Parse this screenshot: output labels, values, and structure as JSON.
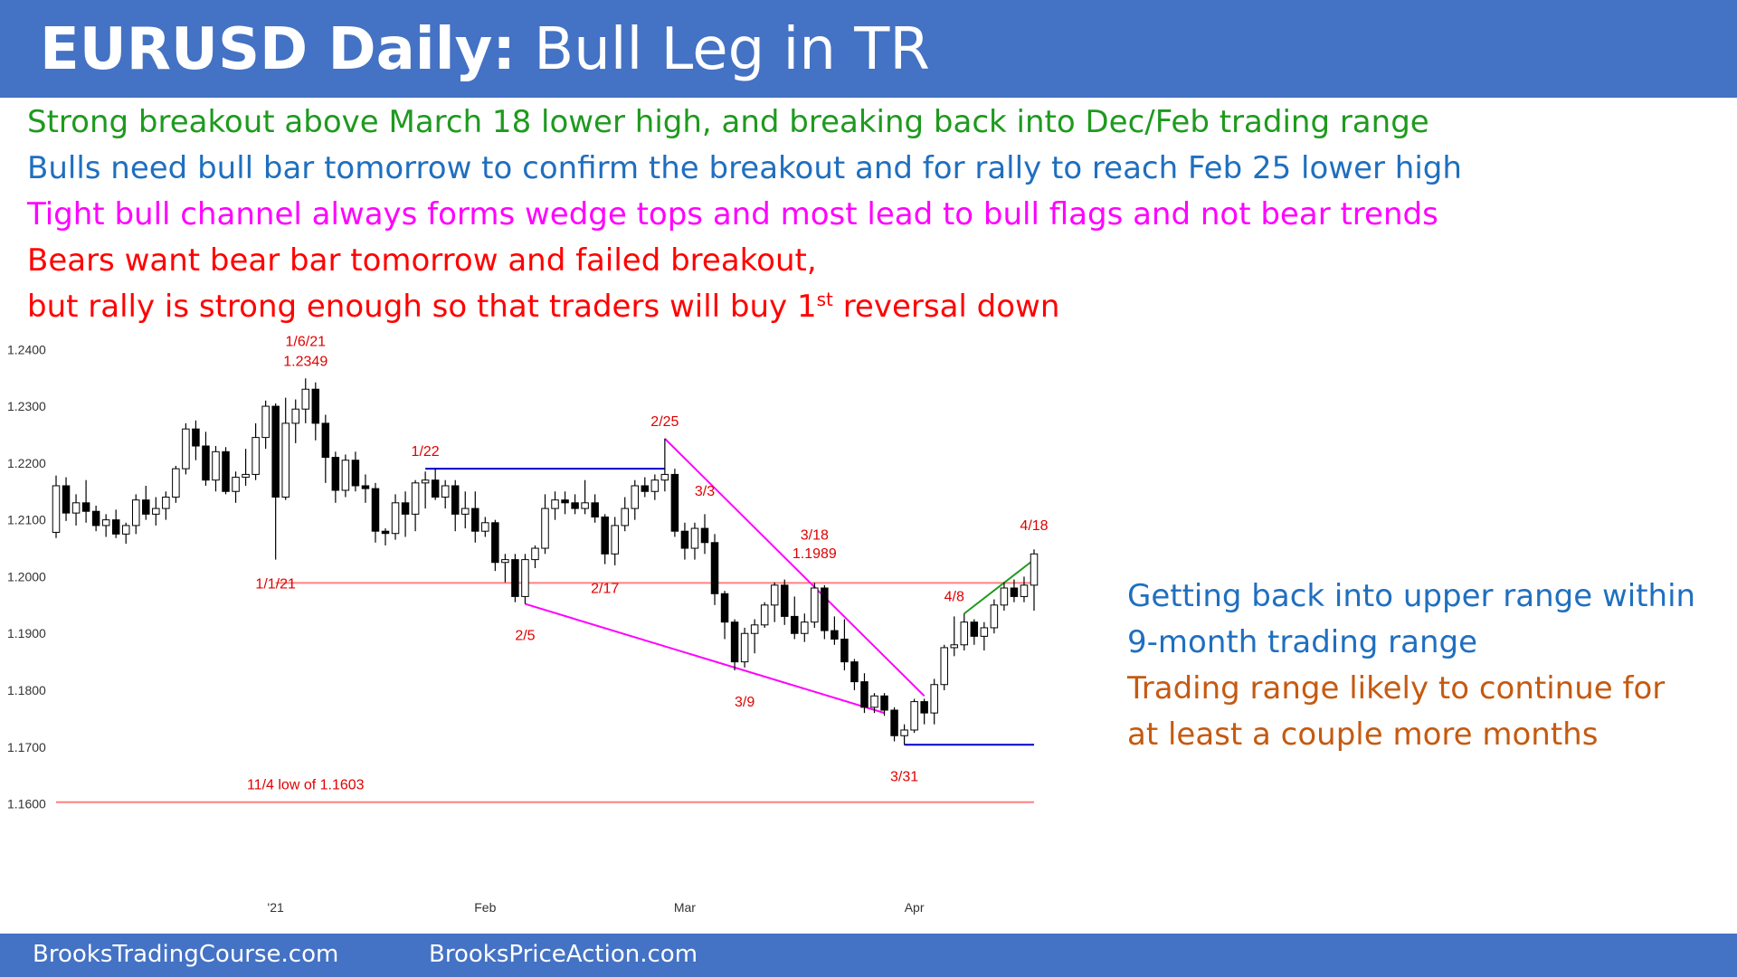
{
  "header": {
    "title_bold": "EURUSD Daily:",
    "title_rest": " Bull Leg in TR",
    "background": "#4472c4"
  },
  "notes": [
    {
      "text": "Strong breakout above March 18 lower high, and breaking back into Dec/Feb trading range",
      "color": "#1e9a1e"
    },
    {
      "text": "Bulls need bull bar tomorrow to confirm the breakout and for rally to reach Feb 25 lower high",
      "color": "#1f6fbf"
    },
    {
      "text": "Tight bull channel always forms wedge tops and most lead to bull flags and not bear trends",
      "color": "#ff00ff"
    },
    {
      "text": "Bears want bear bar tomorrow and failed breakout,",
      "color": "#ff0000"
    }
  ],
  "note_last": {
    "pre": "but rally is strong enough so that traders will buy 1",
    "sup": "st",
    "post": " reversal down",
    "color": "#ff0000"
  },
  "side_notes": [
    {
      "text": "Getting back into upper range within",
      "color": "#1f6fbf"
    },
    {
      "text": "9-month trading range",
      "color": "#1f6fbf"
    },
    {
      "text": "Trading range likely to continue for",
      "color": "#c55a11"
    },
    {
      "text": "at least a couple more months",
      "color": "#c55a11"
    }
  ],
  "footer": {
    "left": "BrooksTradingCourse.com",
    "right": "BrooksPriceAction.com"
  },
  "chart_data": {
    "type": "candlestick",
    "ylim": [
      1.155,
      1.241
    ],
    "yticks": [
      "1.2400",
      "1.2300",
      "1.2200",
      "1.2100",
      "1.2000",
      "1.1900",
      "1.1800",
      "1.1700",
      "1.1600"
    ],
    "xtick_labels": [
      {
        "label": "'21",
        "x": "2021-01-01"
      },
      {
        "label": "Feb",
        "x": "2021-02-01"
      },
      {
        "label": "Mar",
        "x": "2021-03-01"
      },
      {
        "label": "Apr",
        "x": "2021-04-01"
      }
    ],
    "candles": [
      {
        "d": "2020-12-01",
        "o": 1.2078,
        "h": 1.2178,
        "l": 1.2068,
        "c": 1.216
      },
      {
        "d": "2020-12-02",
        "o": 1.216,
        "h": 1.2175,
        "l": 1.2098,
        "c": 1.2112
      },
      {
        "d": "2020-12-03",
        "o": 1.2112,
        "h": 1.2145,
        "l": 1.209,
        "c": 1.213
      },
      {
        "d": "2020-12-04",
        "o": 1.213,
        "h": 1.217,
        "l": 1.2095,
        "c": 1.2115
      },
      {
        "d": "2020-12-07",
        "o": 1.2115,
        "h": 1.2125,
        "l": 1.208,
        "c": 1.209
      },
      {
        "d": "2020-12-08",
        "o": 1.209,
        "h": 1.211,
        "l": 1.207,
        "c": 1.21
      },
      {
        "d": "2020-12-09",
        "o": 1.21,
        "h": 1.2118,
        "l": 1.2068,
        "c": 1.2075
      },
      {
        "d": "2020-12-10",
        "o": 1.2075,
        "h": 1.2095,
        "l": 1.2058,
        "c": 1.209
      },
      {
        "d": "2020-12-11",
        "o": 1.209,
        "h": 1.2145,
        "l": 1.2075,
        "c": 1.2135
      },
      {
        "d": "2020-12-14",
        "o": 1.2135,
        "h": 1.216,
        "l": 1.21,
        "c": 1.211
      },
      {
        "d": "2020-12-15",
        "o": 1.211,
        "h": 1.214,
        "l": 1.209,
        "c": 1.212
      },
      {
        "d": "2020-12-16",
        "o": 1.212,
        "h": 1.215,
        "l": 1.21,
        "c": 1.214
      },
      {
        "d": "2020-12-17",
        "o": 1.214,
        "h": 1.2195,
        "l": 1.213,
        "c": 1.219
      },
      {
        "d": "2020-12-18",
        "o": 1.219,
        "h": 1.227,
        "l": 1.218,
        "c": 1.226
      },
      {
        "d": "2020-12-21",
        "o": 1.226,
        "h": 1.2275,
        "l": 1.2205,
        "c": 1.223
      },
      {
        "d": "2020-12-22",
        "o": 1.223,
        "h": 1.2255,
        "l": 1.216,
        "c": 1.217
      },
      {
        "d": "2020-12-23",
        "o": 1.217,
        "h": 1.223,
        "l": 1.215,
        "c": 1.222
      },
      {
        "d": "2020-12-24",
        "o": 1.222,
        "h": 1.2228,
        "l": 1.2145,
        "c": 1.215
      },
      {
        "d": "2020-12-28",
        "o": 1.215,
        "h": 1.2185,
        "l": 1.213,
        "c": 1.2175
      },
      {
        "d": "2020-12-29",
        "o": 1.2175,
        "h": 1.2225,
        "l": 1.216,
        "c": 1.218
      },
      {
        "d": "2020-12-30",
        "o": 1.218,
        "h": 1.227,
        "l": 1.217,
        "c": 1.2245
      },
      {
        "d": "2020-12-31",
        "o": 1.2245,
        "h": 1.231,
        "l": 1.2225,
        "c": 1.23
      },
      {
        "d": "2021-01-01",
        "o": 1.23,
        "h": 1.2305,
        "l": 1.203,
        "c": 1.214
      },
      {
        "d": "2021-01-04",
        "o": 1.214,
        "h": 1.2315,
        "l": 1.2135,
        "c": 1.227
      },
      {
        "d": "2021-01-05",
        "o": 1.227,
        "h": 1.2312,
        "l": 1.2235,
        "c": 1.2295
      },
      {
        "d": "2021-01-06",
        "o": 1.2295,
        "h": 1.2349,
        "l": 1.227,
        "c": 1.233
      },
      {
        "d": "2021-01-07",
        "o": 1.233,
        "h": 1.2342,
        "l": 1.224,
        "c": 1.227
      },
      {
        "d": "2021-01-08",
        "o": 1.227,
        "h": 1.2285,
        "l": 1.2165,
        "c": 1.221
      },
      {
        "d": "2021-01-11",
        "o": 1.221,
        "h": 1.222,
        "l": 1.213,
        "c": 1.2152
      },
      {
        "d": "2021-01-12",
        "o": 1.2152,
        "h": 1.2215,
        "l": 1.214,
        "c": 1.2205
      },
      {
        "d": "2021-01-13",
        "o": 1.2205,
        "h": 1.222,
        "l": 1.215,
        "c": 1.216
      },
      {
        "d": "2021-01-14",
        "o": 1.216,
        "h": 1.218,
        "l": 1.213,
        "c": 1.2155
      },
      {
        "d": "2021-01-15",
        "o": 1.2155,
        "h": 1.2165,
        "l": 1.206,
        "c": 1.208
      },
      {
        "d": "2021-01-18",
        "o": 1.208,
        "h": 1.2085,
        "l": 1.2055,
        "c": 1.2076
      },
      {
        "d": "2021-01-19",
        "o": 1.2076,
        "h": 1.2145,
        "l": 1.2065,
        "c": 1.213
      },
      {
        "d": "2021-01-20",
        "o": 1.213,
        "h": 1.215,
        "l": 1.207,
        "c": 1.211
      },
      {
        "d": "2021-01-21",
        "o": 1.211,
        "h": 1.217,
        "l": 1.208,
        "c": 1.2165
      },
      {
        "d": "2021-01-22",
        "o": 1.2165,
        "h": 1.2185,
        "l": 1.212,
        "c": 1.217
      },
      {
        "d": "2021-01-25",
        "o": 1.217,
        "h": 1.219,
        "l": 1.2135,
        "c": 1.214
      },
      {
        "d": "2021-01-26",
        "o": 1.214,
        "h": 1.217,
        "l": 1.212,
        "c": 1.216
      },
      {
        "d": "2021-01-27",
        "o": 1.216,
        "h": 1.217,
        "l": 1.208,
        "c": 1.211
      },
      {
        "d": "2021-01-28",
        "o": 1.211,
        "h": 1.215,
        "l": 1.2085,
        "c": 1.212
      },
      {
        "d": "2021-01-29",
        "o": 1.212,
        "h": 1.215,
        "l": 1.206,
        "c": 1.208
      },
      {
        "d": "2021-02-01",
        "o": 1.208,
        "h": 1.2105,
        "l": 1.207,
        "c": 1.2095
      },
      {
        "d": "2021-02-02",
        "o": 1.2095,
        "h": 1.21,
        "l": 1.201,
        "c": 1.2025
      },
      {
        "d": "2021-02-03",
        "o": 1.2025,
        "h": 1.204,
        "l": 1.199,
        "c": 1.203
      },
      {
        "d": "2021-02-04",
        "o": 1.203,
        "h": 1.204,
        "l": 1.1955,
        "c": 1.1965
      },
      {
        "d": "2021-02-05",
        "o": 1.1965,
        "h": 1.204,
        "l": 1.1952,
        "c": 1.203
      },
      {
        "d": "2021-02-08",
        "o": 1.203,
        "h": 1.2055,
        "l": 1.2015,
        "c": 1.205
      },
      {
        "d": "2021-02-09",
        "o": 1.205,
        "h": 1.2145,
        "l": 1.204,
        "c": 1.212
      },
      {
        "d": "2021-02-10",
        "o": 1.212,
        "h": 1.215,
        "l": 1.21,
        "c": 1.2135
      },
      {
        "d": "2021-02-11",
        "o": 1.2135,
        "h": 1.215,
        "l": 1.211,
        "c": 1.213
      },
      {
        "d": "2021-02-12",
        "o": 1.213,
        "h": 1.2145,
        "l": 1.211,
        "c": 1.212
      },
      {
        "d": "2021-02-15",
        "o": 1.212,
        "h": 1.217,
        "l": 1.211,
        "c": 1.213
      },
      {
        "d": "2021-02-16",
        "o": 1.213,
        "h": 1.2145,
        "l": 1.2095,
        "c": 1.2105
      },
      {
        "d": "2021-02-17",
        "o": 1.2105,
        "h": 1.211,
        "l": 1.2022,
        "c": 1.204
      },
      {
        "d": "2021-02-18",
        "o": 1.204,
        "h": 1.2105,
        "l": 1.202,
        "c": 1.209
      },
      {
        "d": "2021-02-19",
        "o": 1.209,
        "h": 1.214,
        "l": 1.208,
        "c": 1.212
      },
      {
        "d": "2021-02-22",
        "o": 1.212,
        "h": 1.217,
        "l": 1.21,
        "c": 1.216
      },
      {
        "d": "2021-02-23",
        "o": 1.216,
        "h": 1.2175,
        "l": 1.214,
        "c": 1.215
      },
      {
        "d": "2021-02-24",
        "o": 1.215,
        "h": 1.218,
        "l": 1.2135,
        "c": 1.217
      },
      {
        "d": "2021-02-25",
        "o": 1.217,
        "h": 1.2243,
        "l": 1.215,
        "c": 1.218
      },
      {
        "d": "2021-02-26",
        "o": 1.218,
        "h": 1.219,
        "l": 1.207,
        "c": 1.208
      },
      {
        "d": "2021-03-01",
        "o": 1.208,
        "h": 1.2095,
        "l": 1.203,
        "c": 1.205
      },
      {
        "d": "2021-03-02",
        "o": 1.205,
        "h": 1.2095,
        "l": 1.203,
        "c": 1.2085
      },
      {
        "d": "2021-03-03",
        "o": 1.2085,
        "h": 1.211,
        "l": 1.204,
        "c": 1.206
      },
      {
        "d": "2021-03-04",
        "o": 1.206,
        "h": 1.2075,
        "l": 1.195,
        "c": 1.197
      },
      {
        "d": "2021-03-05",
        "o": 1.197,
        "h": 1.1975,
        "l": 1.189,
        "c": 1.192
      },
      {
        "d": "2021-03-08",
        "o": 1.192,
        "h": 1.1925,
        "l": 1.1835,
        "c": 1.185
      },
      {
        "d": "2021-03-09",
        "o": 1.185,
        "h": 1.191,
        "l": 1.184,
        "c": 1.19
      },
      {
        "d": "2021-03-10",
        "o": 1.19,
        "h": 1.1925,
        "l": 1.1865,
        "c": 1.1915
      },
      {
        "d": "2021-03-11",
        "o": 1.1915,
        "h": 1.1955,
        "l": 1.191,
        "c": 1.195
      },
      {
        "d": "2021-03-12",
        "o": 1.195,
        "h": 1.199,
        "l": 1.192,
        "c": 1.1985
      },
      {
        "d": "2021-03-15",
        "o": 1.1985,
        "h": 1.1995,
        "l": 1.1915,
        "c": 1.193
      },
      {
        "d": "2021-03-16",
        "o": 1.193,
        "h": 1.1965,
        "l": 1.189,
        "c": 1.19
      },
      {
        "d": "2021-03-17",
        "o": 1.19,
        "h": 1.1935,
        "l": 1.1885,
        "c": 1.192
      },
      {
        "d": "2021-03-18",
        "o": 1.192,
        "h": 1.1989,
        "l": 1.191,
        "c": 1.198
      },
      {
        "d": "2021-03-19",
        "o": 1.198,
        "h": 1.1985,
        "l": 1.189,
        "c": 1.1905
      },
      {
        "d": "2021-03-22",
        "o": 1.1905,
        "h": 1.193,
        "l": 1.188,
        "c": 1.189
      },
      {
        "d": "2021-03-23",
        "o": 1.189,
        "h": 1.1925,
        "l": 1.1835,
        "c": 1.185
      },
      {
        "d": "2021-03-24",
        "o": 1.185,
        "h": 1.1855,
        "l": 1.18,
        "c": 1.1815
      },
      {
        "d": "2021-03-25",
        "o": 1.1815,
        "h": 1.183,
        "l": 1.176,
        "c": 1.177
      },
      {
        "d": "2021-03-26",
        "o": 1.177,
        "h": 1.1795,
        "l": 1.176,
        "c": 1.179
      },
      {
        "d": "2021-03-29",
        "o": 1.179,
        "h": 1.1795,
        "l": 1.1755,
        "c": 1.1765
      },
      {
        "d": "2021-03-30",
        "o": 1.1765,
        "h": 1.177,
        "l": 1.171,
        "c": 1.172
      },
      {
        "d": "2021-03-31",
        "o": 1.172,
        "h": 1.174,
        "l": 1.1704,
        "c": 1.173
      },
      {
        "d": "2021-04-01",
        "o": 1.173,
        "h": 1.1785,
        "l": 1.1725,
        "c": 1.178
      },
      {
        "d": "2021-04-02",
        "o": 1.178,
        "h": 1.1785,
        "l": 1.174,
        "c": 1.176
      },
      {
        "d": "2021-04-05",
        "o": 1.176,
        "h": 1.182,
        "l": 1.174,
        "c": 1.181
      },
      {
        "d": "2021-04-06",
        "o": 1.181,
        "h": 1.188,
        "l": 1.18,
        "c": 1.1875
      },
      {
        "d": "2021-04-07",
        "o": 1.1875,
        "h": 1.193,
        "l": 1.186,
        "c": 1.188
      },
      {
        "d": "2021-04-08",
        "o": 1.188,
        "h": 1.1935,
        "l": 1.187,
        "c": 1.192
      },
      {
        "d": "2021-04-09",
        "o": 1.192,
        "h": 1.1925,
        "l": 1.188,
        "c": 1.1895
      },
      {
        "d": "2021-04-12",
        "o": 1.1895,
        "h": 1.192,
        "l": 1.187,
        "c": 1.191
      },
      {
        "d": "2021-04-13",
        "o": 1.191,
        "h": 1.196,
        "l": 1.19,
        "c": 1.195
      },
      {
        "d": "2021-04-14",
        "o": 1.195,
        "h": 1.199,
        "l": 1.194,
        "c": 1.198
      },
      {
        "d": "2021-04-15",
        "o": 1.198,
        "h": 1.1995,
        "l": 1.1955,
        "c": 1.1965
      },
      {
        "d": "2021-04-16",
        "o": 1.1965,
        "h": 1.2,
        "l": 1.1955,
        "c": 1.1985
      },
      {
        "d": "2021-04-19",
        "o": 1.1985,
        "h": 1.2048,
        "l": 1.194,
        "c": 1.204
      }
    ],
    "hlines": [
      {
        "y": 1.1989,
        "from": "2021-01-01",
        "to": "2021-04-19",
        "color": "#ff8080"
      },
      {
        "y": 1.219,
        "from": "2021-01-22",
        "to": "2021-02-25",
        "color": "#0000cc"
      },
      {
        "y": 1.1704,
        "from": "2021-03-31",
        "to": "2021-04-19",
        "color": "#0000cc"
      },
      {
        "y": 1.1603,
        "from": "2020-12-01",
        "to": "2021-04-19",
        "color": "#ff8080"
      }
    ],
    "trendlines": [
      {
        "from": [
          "2021-02-25",
          1.2243
        ],
        "to": [
          "2021-04-02",
          1.179
        ],
        "color": "#ff00ff"
      },
      {
        "from": [
          "2021-02-05",
          1.1952
        ],
        "to": [
          "2021-03-29",
          1.176
        ],
        "color": "#ff00ff"
      },
      {
        "from": [
          "2021-04-08",
          1.1935
        ],
        "to": [
          "2021-04-19",
          1.203
        ],
        "color": "#1e9a1e"
      }
    ],
    "labels": [
      {
        "text": "1/6/21",
        "x": "2021-01-06",
        "y": 1.2349,
        "pos": "above2"
      },
      {
        "text": "1.2349",
        "x": "2021-01-06",
        "y": 1.2349,
        "pos": "above1"
      },
      {
        "text": "1/1/21",
        "x": "2021-01-01",
        "y": 1.203,
        "pos": "below"
      },
      {
        "text": "1/22",
        "x": "2021-01-22",
        "y": 1.219,
        "pos": "above1"
      },
      {
        "text": "2/25",
        "x": "2021-02-25",
        "y": 1.2243,
        "pos": "above1"
      },
      {
        "text": "3/3",
        "x": "2021-03-03",
        "y": 1.212,
        "pos": "above1"
      },
      {
        "text": "2/17",
        "x": "2021-02-17",
        "y": 1.2022,
        "pos": "below"
      },
      {
        "text": "2/5",
        "x": "2021-02-05",
        "y": 1.1952,
        "pos": "below2"
      },
      {
        "text": "3/18",
        "x": "2021-03-18",
        "y": 1.2043,
        "pos": "above1"
      },
      {
        "text": "1.1989",
        "x": "2021-03-18",
        "y": 1.201,
        "pos": "above1"
      },
      {
        "text": "3/9",
        "x": "2021-03-09",
        "y": 1.1835,
        "pos": "below2"
      },
      {
        "text": "3/31",
        "x": "2021-03-31",
        "y": 1.1704,
        "pos": "below2"
      },
      {
        "text": "4/8",
        "x": "2021-04-07",
        "y": 1.1935,
        "pos": "above1"
      },
      {
        "text": "4/18",
        "x": "2021-04-19",
        "y": 1.206,
        "pos": "above1"
      },
      {
        "text": "11/4 low of 1.1603",
        "x": "2021-01-06",
        "y": 1.1603,
        "pos": "above1"
      }
    ]
  }
}
